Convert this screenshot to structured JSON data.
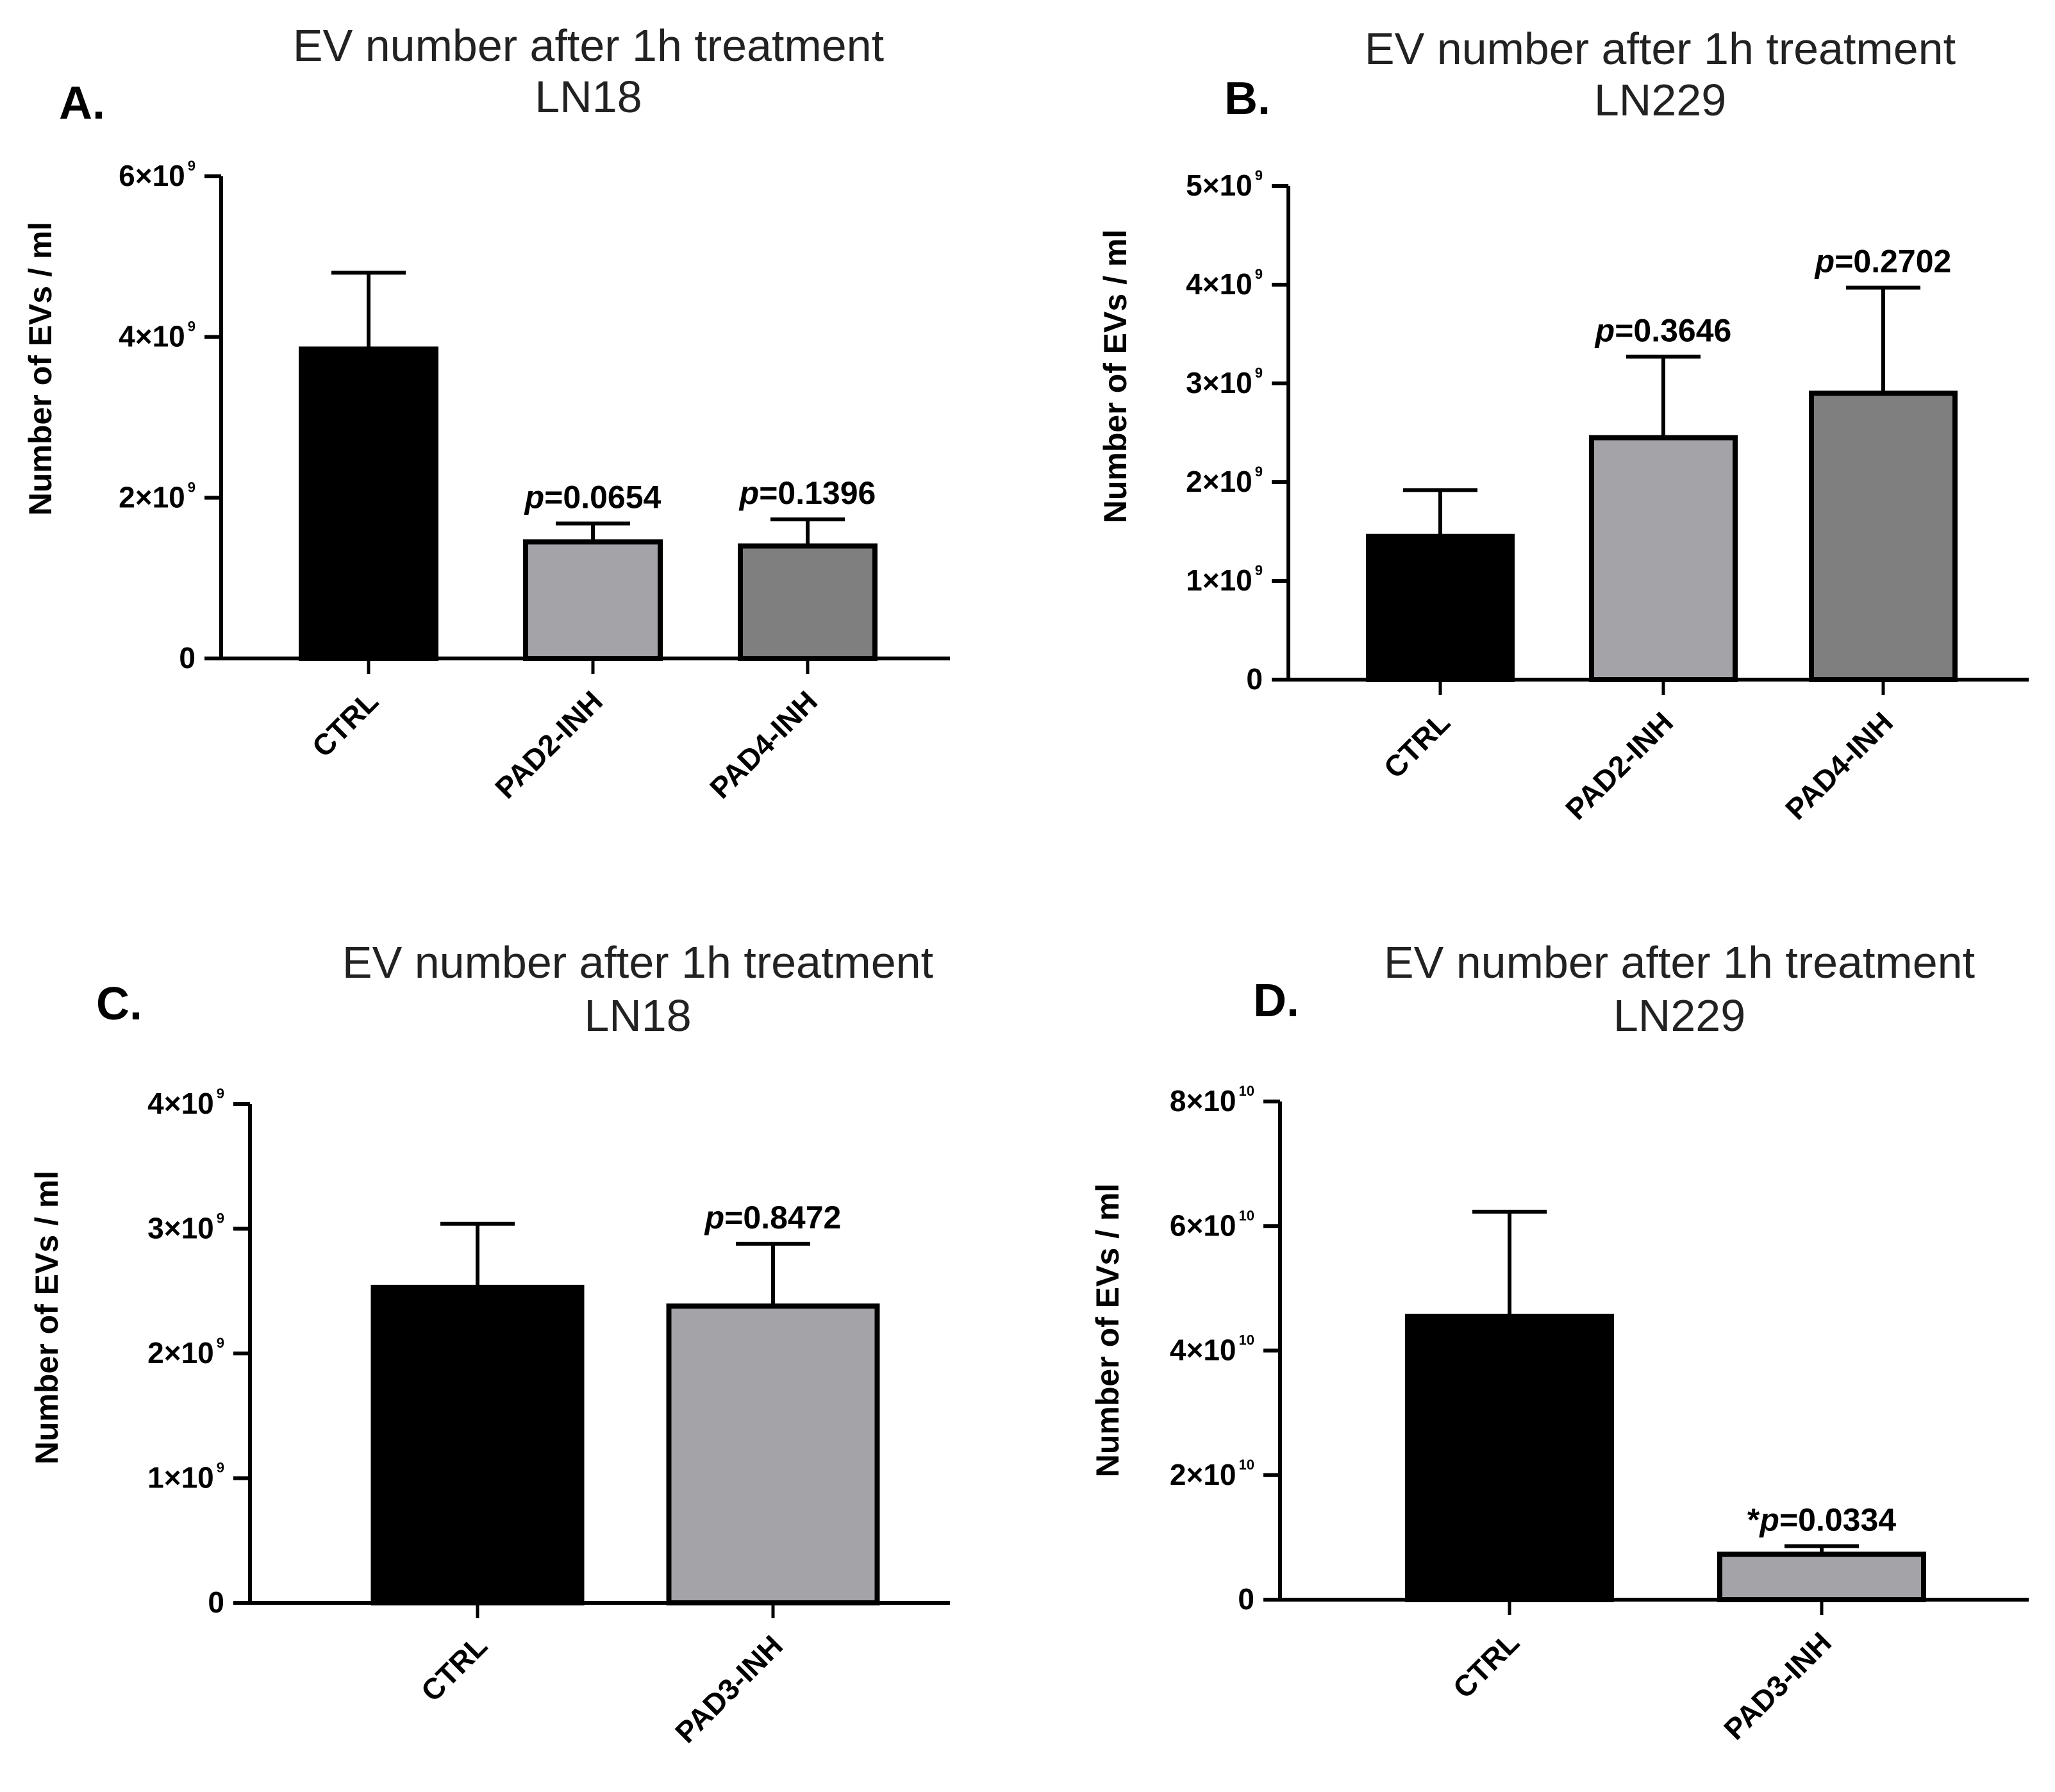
{
  "chart_data": [
    {
      "type": "bar",
      "panel": "A.",
      "title": "EV number after 1h treatment",
      "subtitle": "LN18",
      "xlabel": "",
      "ylabel": "Number of EVs / ml",
      "ylim": [
        0,
        6000000000
      ],
      "ytick_labels": [
        {
          "value": 0,
          "mantissa": "0",
          "exponent": ""
        },
        {
          "value": 2000000000,
          "mantissa": "2×10",
          "exponent": "9"
        },
        {
          "value": 4000000000,
          "mantissa": "4×10",
          "exponent": "9"
        },
        {
          "value": 6000000000,
          "mantissa": "6×10",
          "exponent": "9"
        }
      ],
      "categories": [
        "CTRL",
        "PAD2-INH",
        "PAD4-INH"
      ],
      "values": [
        3850000000,
        1450000000,
        1400000000
      ],
      "errors": [
        950000000,
        230000000,
        330000000
      ],
      "colors": [
        "#000000",
        "#a3a3a8",
        "#7f7f7f"
      ],
      "p_values": [
        {
          "category": "PAD2-INH",
          "prefix": "",
          "p": "p",
          "value": "=0.0654"
        },
        {
          "category": "PAD4-INH",
          "prefix": "",
          "p": "p",
          "value": "=0.1396"
        }
      ]
    },
    {
      "type": "bar",
      "panel": "B.",
      "title": "EV number after 1h treatment",
      "subtitle": "LN229",
      "xlabel": "",
      "ylabel": "Number of EVs / ml",
      "ylim": [
        0,
        5000000000
      ],
      "ytick_labels": [
        {
          "value": 0,
          "mantissa": "0",
          "exponent": ""
        },
        {
          "value": 1000000000,
          "mantissa": "1×10",
          "exponent": "9"
        },
        {
          "value": 2000000000,
          "mantissa": "2×10",
          "exponent": "9"
        },
        {
          "value": 3000000000,
          "mantissa": "3×10",
          "exponent": "9"
        },
        {
          "value": 4000000000,
          "mantissa": "4×10",
          "exponent": "9"
        },
        {
          "value": 5000000000,
          "mantissa": "5×10",
          "exponent": "9"
        }
      ],
      "categories": [
        "CTRL",
        "PAD2-INH",
        "PAD4-INH"
      ],
      "values": [
        1450000000,
        2450000000,
        2900000000
      ],
      "errors": [
        470000000,
        820000000,
        1070000000
      ],
      "colors": [
        "#000000",
        "#a3a3a8",
        "#7f7f7f"
      ],
      "p_values": [
        {
          "category": "PAD2-INH",
          "prefix": "",
          "p": "p",
          "value": "=0.3646"
        },
        {
          "category": "PAD4-INH",
          "prefix": "",
          "p": "p",
          "value": "=0.2702"
        }
      ]
    },
    {
      "type": "bar",
      "panel": "C.",
      "title": "EV number after 1h treatment",
      "subtitle": "LN18",
      "xlabel": "",
      "ylabel": "Number of EVs / ml",
      "ylim": [
        0,
        4000000000
      ],
      "ytick_labels": [
        {
          "value": 0,
          "mantissa": "0",
          "exponent": ""
        },
        {
          "value": 1000000000,
          "mantissa": "1×10",
          "exponent": "9"
        },
        {
          "value": 2000000000,
          "mantissa": "2×10",
          "exponent": "9"
        },
        {
          "value": 3000000000,
          "mantissa": "3×10",
          "exponent": "9"
        },
        {
          "value": 4000000000,
          "mantissa": "4×10",
          "exponent": "9"
        }
      ],
      "categories": [
        "CTRL",
        "PAD3-INH"
      ],
      "values": [
        2530000000,
        2380000000
      ],
      "errors": [
        510000000,
        500000000
      ],
      "colors": [
        "#000000",
        "#a3a3a8"
      ],
      "p_values": [
        {
          "category": "PAD3-INH",
          "prefix": "",
          "p": "p",
          "value": "=0.8472"
        }
      ]
    },
    {
      "type": "bar",
      "panel": "D.",
      "title": "EV number after 1h treatment",
      "subtitle": "LN229",
      "xlabel": "",
      "ylabel": "Number of EVs / ml",
      "ylim": [
        0,
        80000000000
      ],
      "ytick_labels": [
        {
          "value": 0,
          "mantissa": "0",
          "exponent": ""
        },
        {
          "value": 20000000000,
          "mantissa": "2×10",
          "exponent": "10"
        },
        {
          "value": 40000000000,
          "mantissa": "4×10",
          "exponent": "10"
        },
        {
          "value": 60000000000,
          "mantissa": "6×10",
          "exponent": "10"
        },
        {
          "value": 80000000000,
          "mantissa": "8×10",
          "exponent": "10"
        }
      ],
      "categories": [
        "CTRL",
        "PAD3-INH"
      ],
      "values": [
        45500000000,
        7300000000
      ],
      "errors": [
        16800000000,
        1300000000
      ],
      "colors": [
        "#000000",
        "#a3a3a8"
      ],
      "p_values": [
        {
          "category": "PAD3-INH",
          "prefix": "*",
          "p": "p",
          "value": "=0.0334"
        }
      ]
    }
  ]
}
